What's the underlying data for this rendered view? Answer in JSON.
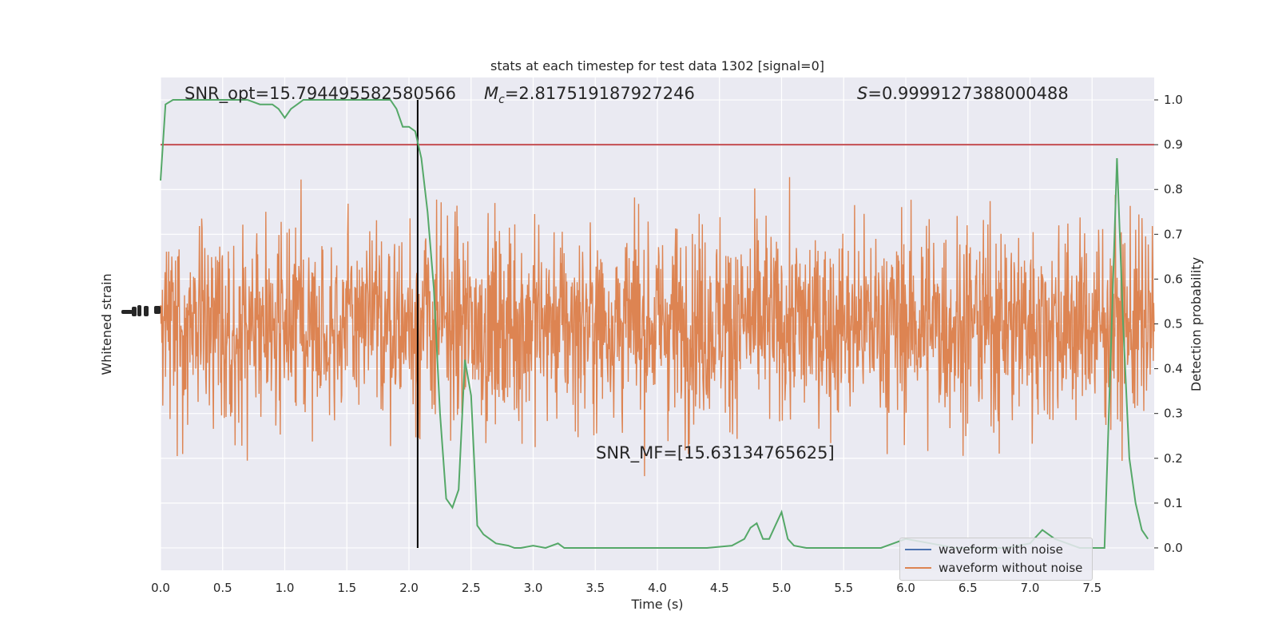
{
  "chart_data": {
    "type": "line",
    "title": "stats at each timestep for test data 1302 [signal=0]",
    "xlabel": "Time (s)",
    "ylabel_left": "Whitened strain",
    "ylabel_right": "Detection probability",
    "xlim": [
      0,
      8
    ],
    "ylim_right": [
      -0.05,
      1.05
    ],
    "x_ticks": [
      "0.0",
      "0.5",
      "1.0",
      "1.5",
      "2.0",
      "2.5",
      "3.0",
      "3.5",
      "4.0",
      "4.5",
      "5.0",
      "5.5",
      "6.0",
      "6.5",
      "7.0",
      "7.5"
    ],
    "y_ticks_right": [
      "0.0",
      "0.1",
      "0.2",
      "0.3",
      "0.4",
      "0.5",
      "0.6",
      "0.7",
      "0.8",
      "0.9",
      "1.0"
    ],
    "grid": true,
    "legend_position": "lower-right",
    "annotations": {
      "snr_opt": "SNR_opt=15.794495582580566",
      "mc_symbol": "M",
      "mc_sub": "c",
      "mc_value": "=2.817519187927246",
      "s_symbol": "S",
      "s_value": "=0.9999127388000488",
      "snr_mf": "SNR_MF=[15.63134765625]"
    },
    "threshold": 0.9,
    "marker_time": 2.07,
    "series": [
      {
        "name": "waveform with noise",
        "color": "#4c72b0",
        "note_values": "dense whitened noise, hidden behind orange trace",
        "center": 0.5,
        "amplitude": 0.28
      },
      {
        "name": "waveform without noise",
        "color": "#dd8452",
        "center": 0.5,
        "amplitude": 0.28
      },
      {
        "name": "",
        "color": "#55a868",
        "x": [
          0.0,
          0.04,
          0.1,
          0.15,
          0.3,
          0.5,
          0.7,
          0.8,
          0.85,
          0.9,
          0.95,
          1.0,
          1.05,
          1.1,
          1.15,
          1.3,
          1.5,
          1.7,
          1.85,
          1.9,
          1.95,
          2.0,
          2.05,
          2.1,
          2.15,
          2.2,
          2.25,
          2.3,
          2.35,
          2.4,
          2.45,
          2.5,
          2.55,
          2.6,
          2.65,
          2.7,
          2.8,
          2.85,
          2.9,
          3.0,
          3.1,
          3.2,
          3.25,
          3.3,
          3.4,
          3.6,
          3.8,
          4.0,
          4.2,
          4.4,
          4.6,
          4.7,
          4.75,
          4.8,
          4.85,
          4.9,
          4.95,
          5.0,
          5.05,
          5.1,
          5.2,
          5.4,
          5.6,
          5.8,
          5.9,
          6.0,
          6.2,
          6.4,
          6.6,
          6.8,
          7.0,
          7.1,
          7.2,
          7.3,
          7.4,
          7.5,
          7.6,
          7.65,
          7.7,
          7.75,
          7.8,
          7.85,
          7.9,
          7.95
        ],
        "values": [
          0.82,
          0.99,
          1.0,
          1.0,
          1.0,
          1.0,
          1.0,
          0.99,
          0.99,
          0.99,
          0.98,
          0.96,
          0.98,
          0.99,
          1.0,
          1.0,
          1.0,
          1.0,
          1.0,
          0.98,
          0.94,
          0.94,
          0.93,
          0.87,
          0.75,
          0.58,
          0.3,
          0.11,
          0.09,
          0.13,
          0.42,
          0.34,
          0.05,
          0.03,
          0.02,
          0.01,
          0.005,
          0.0,
          0.0,
          0.005,
          0.0,
          0.01,
          0.0,
          0.0,
          0.0,
          0.0,
          0.0,
          0.0,
          0.0,
          0.0,
          0.005,
          0.02,
          0.045,
          0.055,
          0.02,
          0.02,
          0.05,
          0.08,
          0.02,
          0.005,
          0.0,
          0.0,
          0.0,
          0.0,
          0.01,
          0.02,
          0.01,
          0.0,
          0.0,
          0.0,
          0.01,
          0.04,
          0.02,
          0.01,
          0.0,
          0.0,
          0.0,
          0.43,
          0.87,
          0.5,
          0.2,
          0.1,
          0.04,
          0.02
        ]
      }
    ]
  }
}
